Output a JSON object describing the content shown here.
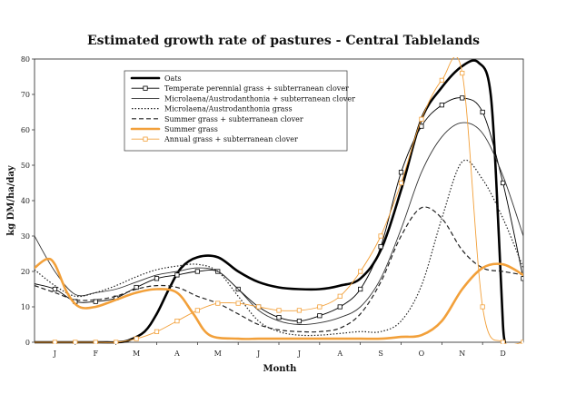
{
  "chart_data": {
    "type": "line",
    "title": "Estimated growth rate of pastures - Central Tablelands",
    "xlabel": "Month",
    "ylabel": "kg DM/ha/day",
    "categories": [
      "J",
      "F",
      "M",
      "A",
      "M",
      "J",
      "J",
      "A",
      "S",
      "O",
      "N",
      "D"
    ],
    "ylim": [
      0,
      80
    ],
    "yticks": [
      0,
      10,
      20,
      30,
      40,
      50,
      60,
      70,
      80
    ],
    "grid": false,
    "legend_position": "top-left",
    "series": [
      {
        "name": "Oats",
        "color": "#000000",
        "style": "thick",
        "x": [
          -0.5,
          1.0,
          1.5,
          1.8,
          2.2,
          2.5,
          2.8,
          3.1,
          3.5,
          4.0,
          4.5,
          5.0,
          5.5,
          6.0,
          6.5,
          7.0,
          7.5,
          8.0,
          8.5,
          9.0,
          9.5,
          10.0,
          10.4,
          10.7,
          10.9,
          11.0,
          11.05
        ],
        "y": [
          0,
          0,
          0,
          0.5,
          3,
          8,
          15,
          21,
          24,
          24,
          20,
          17,
          15.5,
          15,
          15,
          16,
          18,
          26,
          43,
          63,
          72,
          78,
          79,
          70,
          30,
          5,
          0
        ]
      },
      {
        "name": "Temperate perennial grass + subterranean clover",
        "color": "#000000",
        "style": "thin-square",
        "x": [
          -0.5,
          0,
          0.5,
          1,
          1.5,
          2,
          2.5,
          3,
          3.5,
          4,
          4.5,
          5,
          5.5,
          6,
          6.5,
          7,
          7.5,
          8,
          8.5,
          9,
          9.5,
          10,
          10.5,
          11,
          11.5
        ],
        "y": [
          16.5,
          15,
          11.5,
          11.5,
          12.5,
          15.5,
          18,
          19,
          20,
          20,
          15,
          10,
          7,
          6,
          7.5,
          10,
          15,
          27,
          48,
          61,
          67,
          69,
          65,
          45,
          18
        ]
      },
      {
        "name": "Microlaena/Austrodanthonia + subterranean clover",
        "color": "#333333",
        "style": "thin",
        "x": [
          -0.5,
          0,
          0.5,
          1,
          1.5,
          2,
          2.5,
          3,
          3.5,
          4,
          4.5,
          5,
          5.5,
          6,
          6.5,
          7,
          7.5,
          8,
          8.5,
          9,
          9.5,
          10,
          10.5,
          11,
          11.5
        ],
        "y": [
          30,
          20,
          13.5,
          14,
          15,
          17,
          19,
          20,
          21,
          20,
          15,
          9,
          6,
          5,
          5.5,
          7,
          10,
          18,
          32,
          48,
          58,
          62,
          59,
          47,
          30
        ]
      },
      {
        "name": "Microlaena/Austrodanthonia grass",
        "color": "#222222",
        "style": "dotted",
        "x": [
          -0.5,
          0,
          0.5,
          1,
          1.5,
          2,
          2.5,
          3,
          3.5,
          4,
          4.5,
          5,
          5.5,
          6,
          6.5,
          7,
          7.5,
          8,
          8.5,
          9,
          9.5,
          10,
          10.5,
          11,
          11.5
        ],
        "y": [
          20.5,
          16,
          13,
          14,
          16,
          18.5,
          20.5,
          21.5,
          22,
          20,
          13,
          6,
          3,
          2,
          2,
          2.5,
          3,
          3,
          6,
          16,
          35,
          51,
          46,
          35,
          21
        ]
      },
      {
        "name": "Summer grass + subterranean clover",
        "color": "#222222",
        "style": "dashed",
        "x": [
          -0.5,
          0,
          0.5,
          1,
          1.5,
          2,
          2.5,
          3,
          3.5,
          4,
          4.5,
          5,
          5.5,
          6,
          6.5,
          7,
          7.5,
          8,
          8.5,
          9,
          9.5,
          10,
          10.5,
          11,
          11.5
        ],
        "y": [
          16,
          14,
          12,
          12,
          13,
          15,
          16,
          15.5,
          13,
          11,
          8,
          5,
          3.5,
          3,
          3,
          4,
          8,
          17,
          30,
          38,
          35,
          26,
          21,
          20,
          19
        ]
      },
      {
        "name": "Summer grass",
        "color": "#f2a03a",
        "style": "thick",
        "x": [
          -0.5,
          -0.2,
          0,
          0.3,
          0.6,
          1.0,
          1.5,
          2.0,
          2.5,
          3.0,
          3.4,
          3.8,
          4.5,
          5.0,
          5.5,
          6.0,
          6.5,
          7.0,
          7.5,
          8.0,
          8.5,
          9.0,
          9.5,
          10.0,
          10.5,
          11.0,
          11.5
        ],
        "y": [
          21,
          23.5,
          22,
          14,
          10,
          10,
          12,
          14,
          15,
          14,
          8,
          2,
          1,
          1,
          1,
          1,
          1,
          1,
          1,
          1,
          1.5,
          2,
          6,
          15,
          21,
          22,
          19
        ]
      },
      {
        "name": "Annual grass + subterranean clover",
        "color": "#f2a03a",
        "style": "thin-square",
        "x": [
          -0.5,
          0,
          0.5,
          1,
          1.5,
          2,
          2.5,
          3,
          3.5,
          4,
          4.5,
          5,
          5.5,
          6,
          6.5,
          7,
          7.5,
          8,
          8.5,
          9,
          9.5,
          10,
          10.5,
          11,
          11.5
        ],
        "y": [
          0,
          0,
          0,
          0,
          0,
          1,
          3,
          6,
          9,
          11,
          11,
          10,
          9,
          9,
          10,
          13,
          20,
          30,
          45,
          63,
          74,
          76,
          10,
          0,
          0
        ]
      }
    ]
  }
}
